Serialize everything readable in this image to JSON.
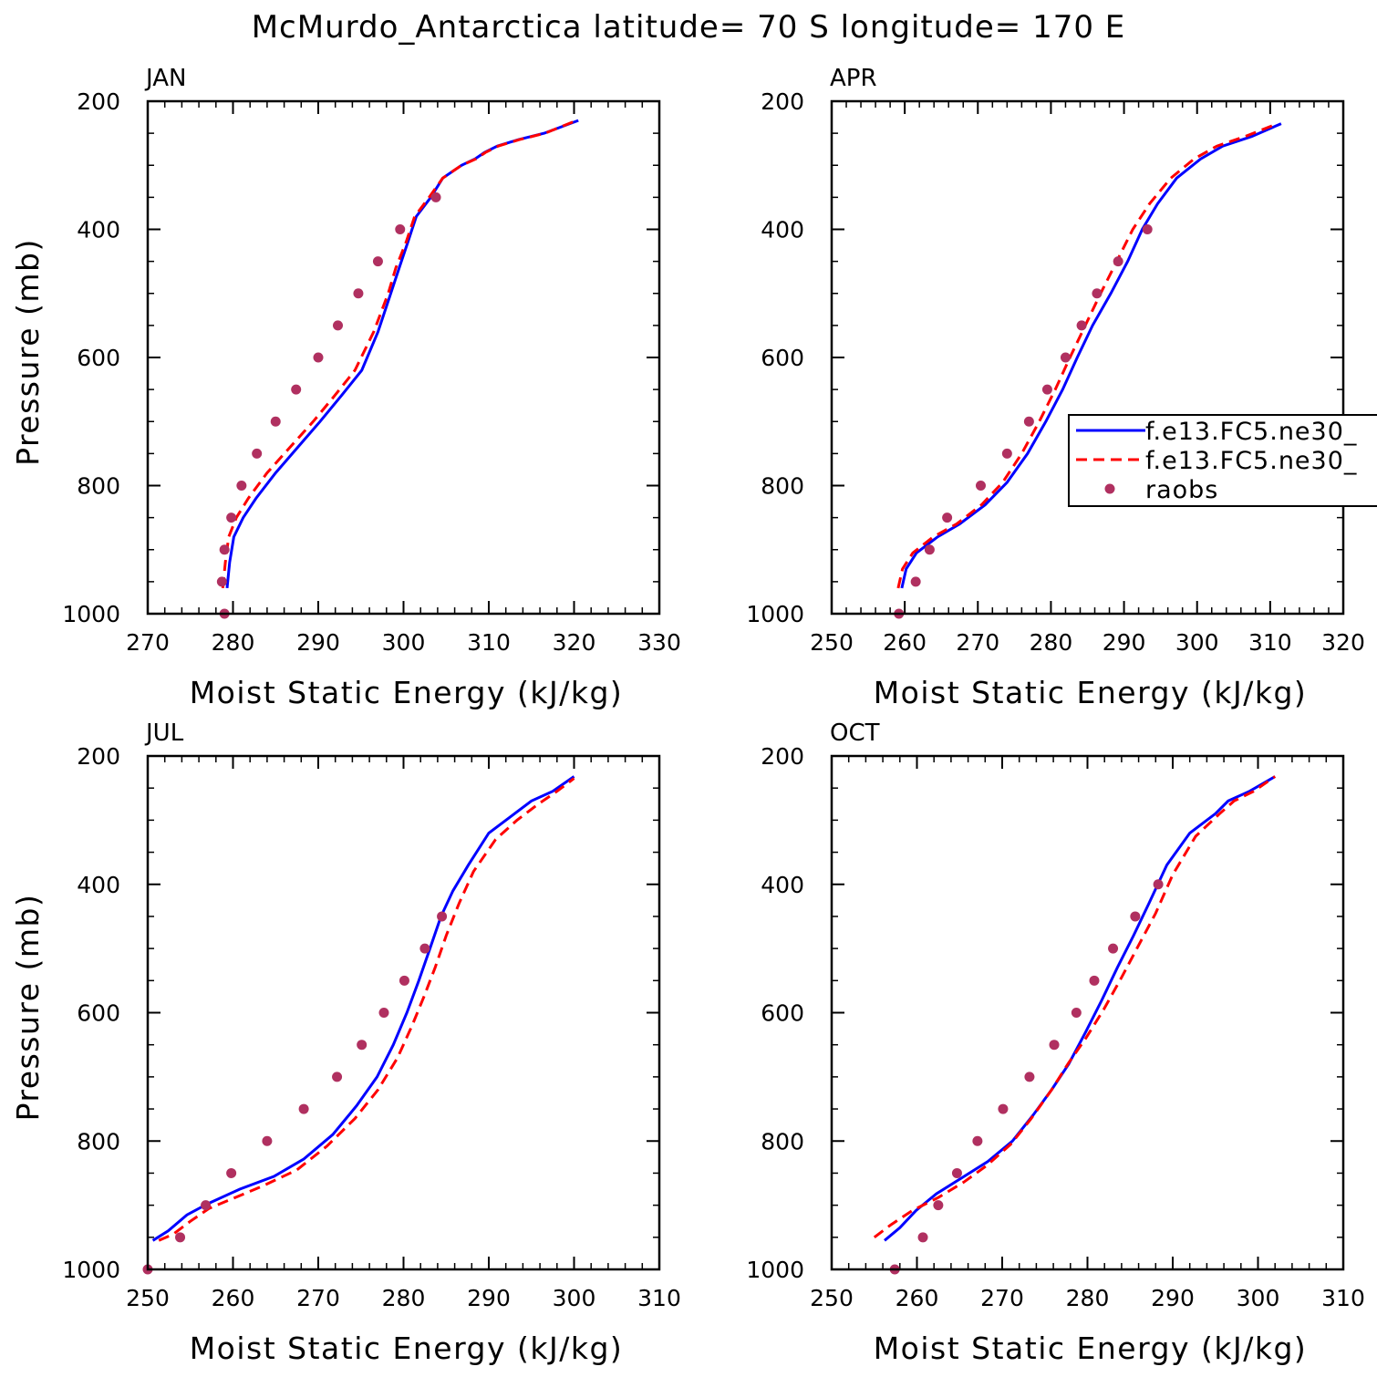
{
  "suptitle": "McMurdo_Antarctica  latitude= 70 S longitude= 170 E",
  "legend": {
    "entries": [
      {
        "label": "f.e13.FC5.ne30_",
        "color": "#0000ff",
        "style": "solid"
      },
      {
        "label": "f.e13.FC5.ne30_",
        "color": "#ff0000",
        "style": "dashed"
      },
      {
        "label": "raobs",
        "color": "#b03060",
        "style": "dot"
      }
    ],
    "location": "right side of APR panel"
  },
  "chart_data": [
    {
      "type": "line",
      "title": "JAN",
      "xlabel": "Moist Static Energy (kJ/kg)",
      "ylabel": "Pressure (mb)",
      "xlim": [
        270,
        330
      ],
      "ylim": [
        1000,
        200
      ],
      "xticks": [
        270,
        280,
        290,
        300,
        310,
        320,
        330
      ],
      "yticks": [
        200,
        400,
        600,
        800,
        1000
      ],
      "series": [
        {
          "name": "f.e13.FC5.ne30_",
          "color": "#0000ff",
          "style": "solid",
          "points": [
            [
              279.3,
              960
            ],
            [
              279.6,
              920
            ],
            [
              280.1,
              880
            ],
            [
              281.2,
              850
            ],
            [
              282.7,
              820
            ],
            [
              285,
              780
            ],
            [
              287.6,
              740
            ],
            [
              290.2,
              700
            ],
            [
              292.7,
              660
            ],
            [
              295.1,
              620
            ],
            [
              297,
              560
            ],
            [
              298.5,
              500
            ],
            [
              299.5,
              460
            ],
            [
              300.5,
              420
            ],
            [
              301.5,
              380
            ],
            [
              303.2,
              350
            ],
            [
              304.6,
              320
            ],
            [
              306.8,
              300
            ],
            [
              308.4,
              290
            ],
            [
              309.5,
              280
            ],
            [
              311,
              270
            ],
            [
              313.5,
              260
            ],
            [
              316.5,
              250
            ],
            [
              320.5,
              230
            ]
          ]
        },
        {
          "name": "f.e13.FC5.ne30_",
          "color": "#ff0000",
          "style": "dashed",
          "points": [
            [
              278.8,
              960
            ],
            [
              279.1,
              920
            ],
            [
              279.5,
              880
            ],
            [
              280.4,
              850
            ],
            [
              281.8,
              820
            ],
            [
              284,
              780
            ],
            [
              286.7,
              740
            ],
            [
              289.4,
              700
            ],
            [
              291.9,
              660
            ],
            [
              294.3,
              620
            ],
            [
              296.5,
              560
            ],
            [
              298.2,
              500
            ],
            [
              299.1,
              460
            ],
            [
              300.3,
              420
            ],
            [
              301.3,
              380
            ],
            [
              303,
              350
            ],
            [
              304.6,
              320
            ],
            [
              306.8,
              300
            ],
            [
              308.5,
              290
            ],
            [
              309.6,
              280
            ],
            [
              311.1,
              270
            ],
            [
              313.6,
              260
            ],
            [
              316.6,
              250
            ],
            [
              320.3,
              230
            ]
          ]
        },
        {
          "name": "raobs",
          "color": "#b03060",
          "style": "dot",
          "points": [
            [
              279,
              1000
            ],
            [
              278.7,
              950
            ],
            [
              279,
              900
            ],
            [
              279.8,
              850
            ],
            [
              281,
              800
            ],
            [
              282.8,
              750
            ],
            [
              285,
              700
            ],
            [
              287.4,
              650
            ],
            [
              290,
              600
            ],
            [
              292.3,
              550
            ],
            [
              294.7,
              500
            ],
            [
              297,
              450
            ],
            [
              299.6,
              400
            ],
            [
              303.8,
              350
            ]
          ]
        }
      ]
    },
    {
      "type": "line",
      "title": "APR",
      "xlabel": "Moist Static Energy (kJ/kg)",
      "ylabel": "",
      "xlim": [
        250,
        320
      ],
      "ylim": [
        1000,
        200
      ],
      "xticks": [
        250,
        260,
        270,
        280,
        290,
        300,
        310,
        320
      ],
      "yticks": [
        200,
        400,
        600,
        800,
        1000
      ],
      "series": [
        {
          "name": "f.e13.FC5.ne30_",
          "color": "#0000ff",
          "style": "solid",
          "points": [
            [
              259.6,
              960
            ],
            [
              260.2,
              930
            ],
            [
              261.6,
              905
            ],
            [
              264.5,
              880
            ],
            [
              267.5,
              860
            ],
            [
              271,
              830
            ],
            [
              274,
              795
            ],
            [
              276.8,
              750
            ],
            [
              279.3,
              700
            ],
            [
              281.6,
              650
            ],
            [
              283.6,
              600
            ],
            [
              285.7,
              550
            ],
            [
              288.2,
              500
            ],
            [
              290.5,
              450
            ],
            [
              292.5,
              400
            ],
            [
              294.6,
              360
            ],
            [
              297.2,
              320
            ],
            [
              300.5,
              290
            ],
            [
              303.5,
              270
            ],
            [
              307.5,
              255
            ],
            [
              311.5,
              235
            ]
          ]
        },
        {
          "name": "f.e13.FC5.ne30_",
          "color": "#ff0000",
          "style": "dashed",
          "points": [
            [
              259.1,
              960
            ],
            [
              259.7,
              930
            ],
            [
              261.1,
              905
            ],
            [
              263.9,
              880
            ],
            [
              267.1,
              860
            ],
            [
              270.5,
              830
            ],
            [
              273.4,
              795
            ],
            [
              276,
              750
            ],
            [
              278.4,
              700
            ],
            [
              280.6,
              650
            ],
            [
              282.6,
              600
            ],
            [
              284.7,
              550
            ],
            [
              286.8,
              500
            ],
            [
              289,
              450
            ],
            [
              291.2,
              400
            ],
            [
              293.5,
              360
            ],
            [
              296.4,
              320
            ],
            [
              299.6,
              290
            ],
            [
              302.7,
              270
            ],
            [
              306.6,
              255
            ],
            [
              311,
              235
            ]
          ]
        },
        {
          "name": "raobs",
          "color": "#b03060",
          "style": "dot",
          "points": [
            [
              259.2,
              1000
            ],
            [
              261.5,
              950
            ],
            [
              263.4,
              900
            ],
            [
              265.8,
              850
            ],
            [
              270.4,
              800
            ],
            [
              274,
              750
            ],
            [
              277,
              700
            ],
            [
              279.5,
              650
            ],
            [
              282,
              600
            ],
            [
              284.2,
              550
            ],
            [
              286.3,
              500
            ],
            [
              289.2,
              450
            ],
            [
              293.2,
              400
            ]
          ]
        }
      ]
    },
    {
      "type": "line",
      "title": "JUL",
      "xlabel": "Moist Static Energy (kJ/kg)",
      "ylabel": "Pressure (mb)",
      "xlim": [
        250,
        310
      ],
      "ylim": [
        1000,
        200
      ],
      "xticks": [
        250,
        260,
        270,
        280,
        290,
        300,
        310
      ],
      "yticks": [
        200,
        400,
        600,
        800,
        1000
      ],
      "series": [
        {
          "name": "f.e13.FC5.ne30_",
          "color": "#0000ff",
          "style": "solid",
          "points": [
            [
              250.6,
              955
            ],
            [
              252.4,
              940
            ],
            [
              254.6,
              915
            ],
            [
              257,
              898
            ],
            [
              260.8,
              875
            ],
            [
              264.8,
              855
            ],
            [
              268.3,
              828
            ],
            [
              271.7,
              790
            ],
            [
              274.5,
              745
            ],
            [
              276.9,
              700
            ],
            [
              278.8,
              650
            ],
            [
              280.4,
              600
            ],
            [
              281.8,
              550
            ],
            [
              283.1,
              500
            ],
            [
              284.4,
              450
            ],
            [
              285.8,
              410
            ],
            [
              287.6,
              370
            ],
            [
              290,
              320
            ],
            [
              292.5,
              295
            ],
            [
              295,
              270
            ],
            [
              297.5,
              255
            ],
            [
              300,
              232
            ]
          ]
        },
        {
          "name": "f.e13.FC5.ne30_",
          "color": "#ff0000",
          "style": "dashed",
          "points": [
            [
              251.3,
              955
            ],
            [
              253,
              945
            ],
            [
              255,
              925
            ],
            [
              257.2,
              905
            ],
            [
              259.9,
              890
            ],
            [
              263.5,
              870
            ],
            [
              267.5,
              845
            ],
            [
              271,
              808
            ],
            [
              274.3,
              765
            ],
            [
              277,
              720
            ],
            [
              279.3,
              670
            ],
            [
              281,
              620
            ],
            [
              282.4,
              575
            ],
            [
              283.7,
              530
            ],
            [
              285,
              480
            ],
            [
              286.5,
              430
            ],
            [
              288.2,
              380
            ],
            [
              290.8,
              330
            ],
            [
              293.3,
              300
            ],
            [
              295.8,
              275
            ],
            [
              298,
              255
            ],
            [
              300,
              235
            ]
          ]
        },
        {
          "name": "raobs",
          "color": "#b03060",
          "style": "dot",
          "points": [
            [
              250,
              1000
            ],
            [
              253.8,
              950
            ],
            [
              256.8,
              900
            ],
            [
              259.8,
              850
            ],
            [
              264,
              800
            ],
            [
              268.3,
              750
            ],
            [
              272.2,
              700
            ],
            [
              275.1,
              650
            ],
            [
              277.7,
              600
            ],
            [
              280.1,
              550
            ],
            [
              282.5,
              500
            ],
            [
              284.5,
              450
            ]
          ]
        }
      ]
    },
    {
      "type": "line",
      "title": "OCT",
      "xlabel": "Moist Static Energy (kJ/kg)",
      "ylabel": "",
      "xlim": [
        250,
        310
      ],
      "ylim": [
        1000,
        200
      ],
      "xticks": [
        250,
        260,
        270,
        280,
        290,
        300,
        310
      ],
      "yticks": [
        200,
        400,
        600,
        800,
        1000
      ],
      "series": [
        {
          "name": "f.e13.FC5.ne30_",
          "color": "#0000ff",
          "style": "solid",
          "points": [
            [
              256.2,
              955
            ],
            [
              258,
              935
            ],
            [
              259.9,
              908
            ],
            [
              262.3,
              882
            ],
            [
              265.3,
              857
            ],
            [
              268.3,
              832
            ],
            [
              271.2,
              800
            ],
            [
              273.6,
              760
            ],
            [
              275.8,
              720
            ],
            [
              277.8,
              680
            ],
            [
              279.8,
              630
            ],
            [
              281.7,
              580
            ],
            [
              283.5,
              530
            ],
            [
              285.4,
              480
            ],
            [
              287.2,
              430
            ],
            [
              289.3,
              370
            ],
            [
              292,
              320
            ],
            [
              295,
              290
            ],
            [
              296.5,
              270
            ],
            [
              299,
              255
            ],
            [
              302,
              232
            ]
          ]
        },
        {
          "name": "f.e13.FC5.ne30_",
          "color": "#ff0000",
          "style": "dashed",
          "points": [
            [
              255,
              950
            ],
            [
              257,
              930
            ],
            [
              259.5,
              908
            ],
            [
              262.5,
              888
            ],
            [
              265.5,
              864
            ],
            [
              268.2,
              838
            ],
            [
              271,
              805
            ],
            [
              273.4,
              765
            ],
            [
              275.8,
              720
            ],
            [
              277.8,
              678
            ],
            [
              279.8,
              640
            ],
            [
              281.9,
              595
            ],
            [
              284,
              545
            ],
            [
              286,
              495
            ],
            [
              288,
              445
            ],
            [
              290,
              385
            ],
            [
              292.7,
              325
            ],
            [
              295.5,
              290
            ],
            [
              297.2,
              270
            ],
            [
              299.5,
              255
            ],
            [
              302,
              232
            ]
          ]
        },
        {
          "name": "raobs",
          "color": "#b03060",
          "style": "dot",
          "points": [
            [
              257.4,
              1000
            ],
            [
              260.7,
              950
            ],
            [
              262.5,
              900
            ],
            [
              264.7,
              850
            ],
            [
              267.1,
              800
            ],
            [
              270.1,
              750
            ],
            [
              273.2,
              700
            ],
            [
              276.1,
              650
            ],
            [
              278.7,
              600
            ],
            [
              280.8,
              550
            ],
            [
              283,
              500
            ],
            [
              285.6,
              450
            ],
            [
              288.3,
              400
            ]
          ]
        }
      ]
    }
  ]
}
